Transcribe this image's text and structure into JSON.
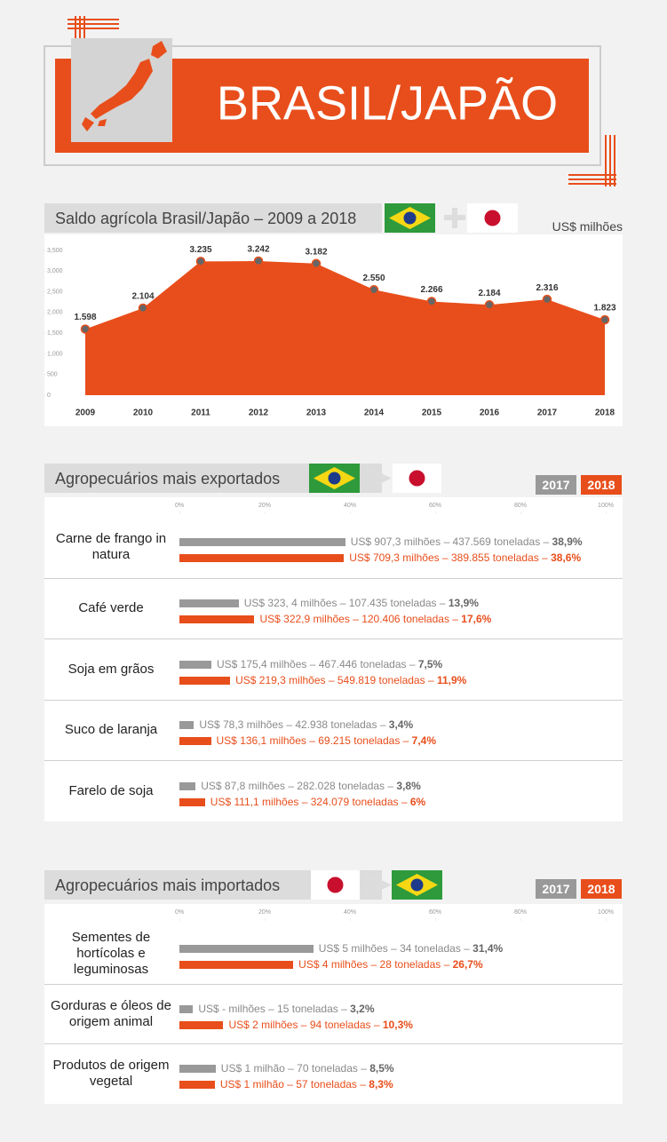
{
  "header": {
    "title": "BRASIL/JAPÃO"
  },
  "chart_data": [
    {
      "type": "area",
      "title": "Saldo agrícola Brasil/Japão – 2009 a 2018",
      "unit": "US$ milhões",
      "categories": [
        "2009",
        "2010",
        "2011",
        "2012",
        "2013",
        "2014",
        "2015",
        "2016",
        "2017",
        "2018"
      ],
      "values": [
        1598,
        2104,
        3235,
        3242,
        3182,
        2550,
        2266,
        2184,
        2316,
        1823
      ],
      "value_labels": [
        "1.598",
        "2.104",
        "3.235",
        "3.242",
        "3.182",
        "2.550",
        "2.266",
        "2.184",
        "2.316",
        "1.823"
      ],
      "color": "#e84e1b",
      "ylim": [
        0,
        3500
      ],
      "yticks": [
        0,
        500,
        {
          "value": 1000,
          "label": "1,000"
        },
        {
          "value": 1500,
          "label": "1,500"
        },
        {
          "value": 2000,
          "label": "2,000"
        },
        {
          "value": 2500,
          "label": "2,500"
        },
        {
          "value": 3000,
          "label": "3,000"
        },
        {
          "value": 3500,
          "label": "3,500"
        }
      ]
    },
    {
      "type": "hbar",
      "title": "Agropecuários mais exportados",
      "categories": [
        "Carne de frango in natura",
        "Café verde",
        "Soja em grãos",
        "Suco de laranja",
        "Farelo de soja"
      ],
      "series": [
        {
          "name": "2017",
          "color": "#999999",
          "values": [
            38.9,
            13.9,
            7.5,
            3.4,
            3.8
          ],
          "value_labels": [
            "US$ 907,3 milhões – 437.569 toneladas – 38,9%",
            "US$ 323, 4 milhões – 107.435 toneladas – 13,9%",
            "US$ 175,4 milhões – 467.446 toneladas – 7,5%",
            "US$ 78,3 milhões – 42.938  toneladas – 3,4%",
            "US$ 87,8 milhões – 282.028 toneladas – 3,8%"
          ]
        },
        {
          "name": "2018",
          "color": "#e84e1b",
          "values": [
            38.6,
            17.6,
            11.9,
            7.4,
            6
          ],
          "value_labels": [
            "US$ 709,3 milhões – 389.855 toneladas – 38,6%",
            "US$ 322,9 milhões – 120.406 toneladas – 17,6%",
            "US$ 219,3 milhões – 549.819 toneladas – 11,9%",
            "US$ 136,1 milhões – 69.215 toneladas – 7,4%",
            "US$ 111,1 milhões – 324.079 toneladas – 6%"
          ]
        }
      ],
      "xlim": [
        0,
        100
      ],
      "xticks": [
        {
          "value": 0,
          "label": "0%"
        },
        {
          "value": 20,
          "label": "20%"
        },
        {
          "value": 40,
          "label": "40%"
        },
        {
          "value": 60,
          "label": "60%"
        },
        {
          "value": 80,
          "label": "80%"
        },
        {
          "value": 100,
          "label": "100%"
        }
      ]
    },
    {
      "type": "hbar",
      "title": "Agropecuários mais importados",
      "categories": [
        "Sementes de hortícolas e leguminosas",
        "Gorduras e óleos de origem animal",
        "Produtos de origem vegetal"
      ],
      "series": [
        {
          "name": "2017",
          "color": "#999999",
          "values": [
            31.4,
            3.2,
            8.5
          ],
          "value_labels": [
            "US$ 5 milhões – 34 toneladas – 31,4%",
            "US$  - milhões – 15 toneladas – 3,2%",
            "US$ 1 milhão – 70 toneladas – 8,5%"
          ]
        },
        {
          "name": "2018",
          "color": "#e84e1b",
          "values": [
            26.7,
            10.3,
            8.3
          ],
          "value_labels": [
            "US$ 4 milhões – 28 toneladas – 26,7%",
            "US$ 2 milhões – 94 toneladas – 10,3%",
            "US$ 1 milhão – 57 toneladas – 8,3%"
          ]
        }
      ],
      "xlim": [
        0,
        100
      ],
      "xticks": [
        {
          "value": 0,
          "label": "0%"
        },
        {
          "value": 20,
          "label": "20%"
        },
        {
          "value": 40,
          "label": "40%"
        },
        {
          "value": 60,
          "label": "60%"
        },
        {
          "value": 80,
          "label": "80%"
        },
        {
          "value": 100,
          "label": "100%"
        }
      ]
    }
  ]
}
